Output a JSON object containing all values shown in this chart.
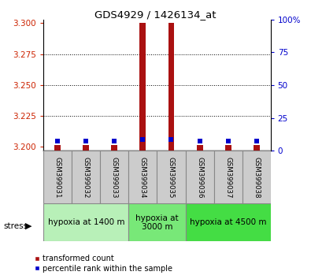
{
  "title": "GDS4929 / 1426134_at",
  "samples": [
    "GSM399031",
    "GSM399032",
    "GSM399033",
    "GSM399034",
    "GSM399035",
    "GSM399036",
    "GSM399037",
    "GSM399038"
  ],
  "red_values": [
    3.2015,
    3.2015,
    3.2015,
    3.3,
    3.3,
    3.2015,
    3.2015,
    3.2015
  ],
  "blue_values": [
    3.205,
    3.205,
    3.205,
    3.206,
    3.206,
    3.205,
    3.205,
    3.205
  ],
  "ylim_left": [
    3.197,
    3.303
  ],
  "ylim_right": [
    0,
    100
  ],
  "yticks_left": [
    3.2,
    3.225,
    3.25,
    3.275,
    3.3
  ],
  "yticks_right": [
    0,
    25,
    50,
    75,
    100
  ],
  "groups": [
    {
      "label": "hypoxia at 1400 m",
      "start": 0,
      "end": 3,
      "color": "#b8f0b8"
    },
    {
      "label": "hypoxia at\n3000 m",
      "start": 3,
      "end": 5,
      "color": "#78e878"
    },
    {
      "label": "hypoxia at 4500 m",
      "start": 5,
      "end": 8,
      "color": "#44dd44"
    }
  ],
  "red_color": "#aa1111",
  "blue_color": "#0000cc",
  "legend_red": "transformed count",
  "legend_blue": "percentile rank within the sample",
  "stress_label": "stress",
  "title_color": "black",
  "left_tick_color": "#cc2200",
  "right_tick_color": "#0000cc",
  "bg_plot": "white",
  "bg_sample_box": "#cccccc",
  "border_color": "#888888"
}
